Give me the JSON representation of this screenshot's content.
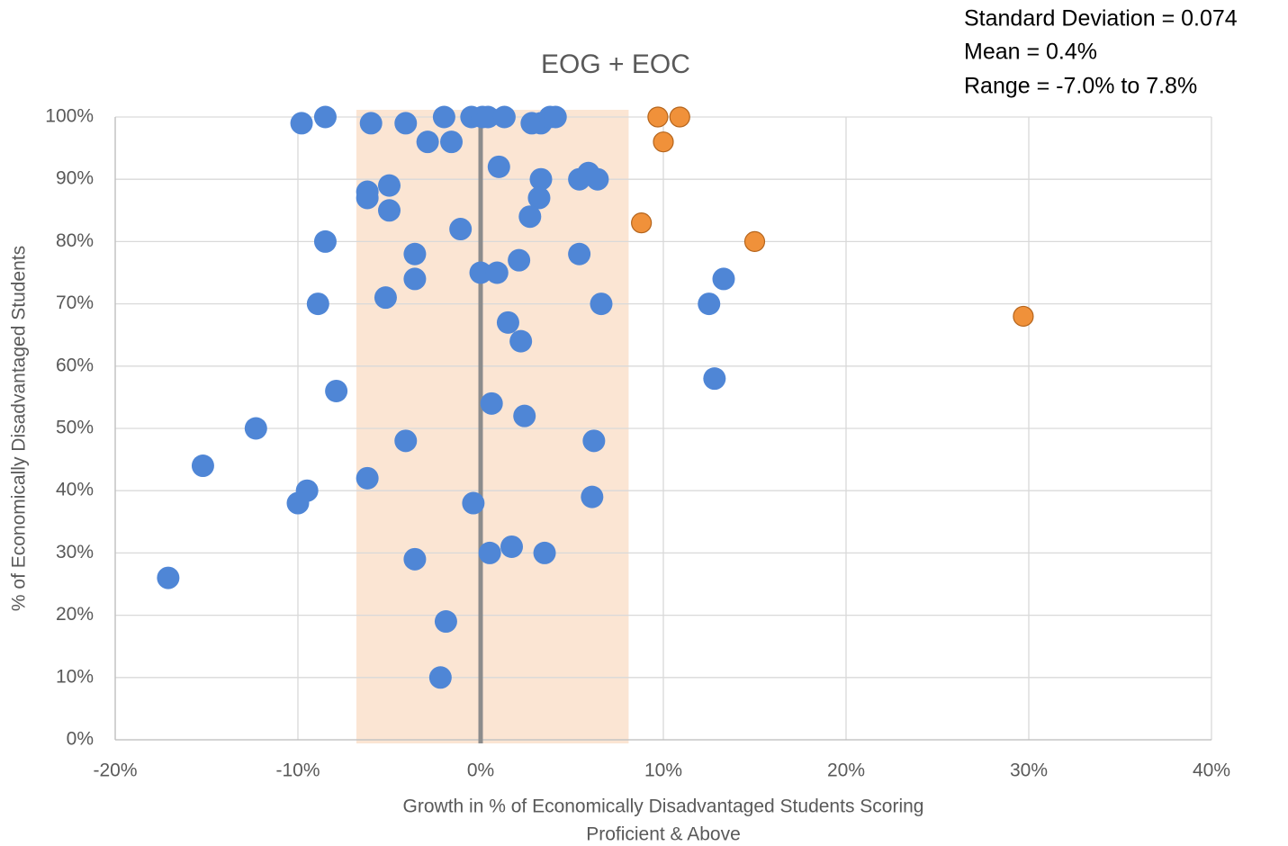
{
  "chart_data": {
    "type": "scatter",
    "title": "EOG + EOC",
    "annotations": [
      "Standard Deviation = 0.074",
      "Mean = 0.4%",
      "Range = -7.0% to 7.8%"
    ],
    "xlabel": [
      "Growth in % of Economically Disadvantaged Students Scoring",
      "Proficient & Above"
    ],
    "ylabel": "% of Economically Disadvantaged Students",
    "xlim": [
      -20,
      40
    ],
    "ylim": [
      0,
      100
    ],
    "xticks": [
      {
        "value": -20,
        "label": "-20%"
      },
      {
        "value": -10,
        "label": "-10%"
      },
      {
        "value": 0,
        "label": "0%"
      },
      {
        "value": 10,
        "label": "10%"
      },
      {
        "value": 20,
        "label": "20%"
      },
      {
        "value": 30,
        "label": "30%"
      },
      {
        "value": 40,
        "label": "40%"
      }
    ],
    "yticks": [
      {
        "value": 0,
        "label": "0%"
      },
      {
        "value": 10,
        "label": "10%"
      },
      {
        "value": 20,
        "label": "20%"
      },
      {
        "value": 30,
        "label": "30%"
      },
      {
        "value": 40,
        "label": "40%"
      },
      {
        "value": 50,
        "label": "50%"
      },
      {
        "value": 60,
        "label": "60%"
      },
      {
        "value": 70,
        "label": "70%"
      },
      {
        "value": 80,
        "label": "80%"
      },
      {
        "value": 90,
        "label": "90%"
      },
      {
        "value": 100,
        "label": "100%"
      }
    ],
    "grid": true,
    "band_x": [
      -6.8,
      8.1
    ],
    "band_color": "#fbe5d3",
    "vline_x": 0,
    "vline_color": "#8c8c8c",
    "series": [
      {
        "color": "#4f86d6",
        "x": [
          -9.8,
          -8.5,
          -6.0,
          -4.1,
          -2.0,
          -2.9,
          -1.6,
          -0.5,
          0.1,
          0.4,
          1.3,
          2.8,
          3.3,
          3.8,
          4.1,
          1.0,
          3.3,
          5.4,
          5.9,
          6.4,
          -6.2,
          -6.2,
          -5.0,
          -5.0,
          3.2,
          2.7,
          -1.1,
          -8.5,
          -3.6,
          5.4,
          2.1,
          -3.6,
          0,
          0.9,
          13.3,
          -8.9,
          -5.2,
          6.6,
          12.5,
          1.5,
          2.2,
          12.8,
          -7.9,
          0.6,
          2.4,
          -12.3,
          -4.1,
          6.2,
          -15.2,
          -6.2,
          -9.5,
          -10.0,
          -0.4,
          6.1,
          1.7,
          0.5,
          3.5,
          -3.6,
          -17.1,
          -1.9,
          -2.2
        ],
        "y": [
          99,
          100,
          99,
          99,
          100,
          96,
          96,
          100,
          100,
          100,
          100,
          99,
          99,
          100,
          100,
          92,
          90,
          90,
          91,
          90,
          88,
          87,
          89,
          85,
          87,
          84,
          82,
          80,
          78,
          78,
          77,
          74,
          75,
          75,
          74,
          70,
          71,
          70,
          70,
          67,
          64,
          58,
          56,
          54,
          52,
          50,
          48,
          48,
          44,
          42,
          40,
          38,
          38,
          39,
          31,
          30,
          30,
          29,
          26,
          19,
          10
        ]
      },
      {
        "color": "#f0913a",
        "x": [
          9.7,
          10.9,
          10.0,
          8.8,
          15.0,
          29.7
        ],
        "y": [
          100,
          100,
          96,
          83,
          80,
          68
        ]
      }
    ]
  }
}
